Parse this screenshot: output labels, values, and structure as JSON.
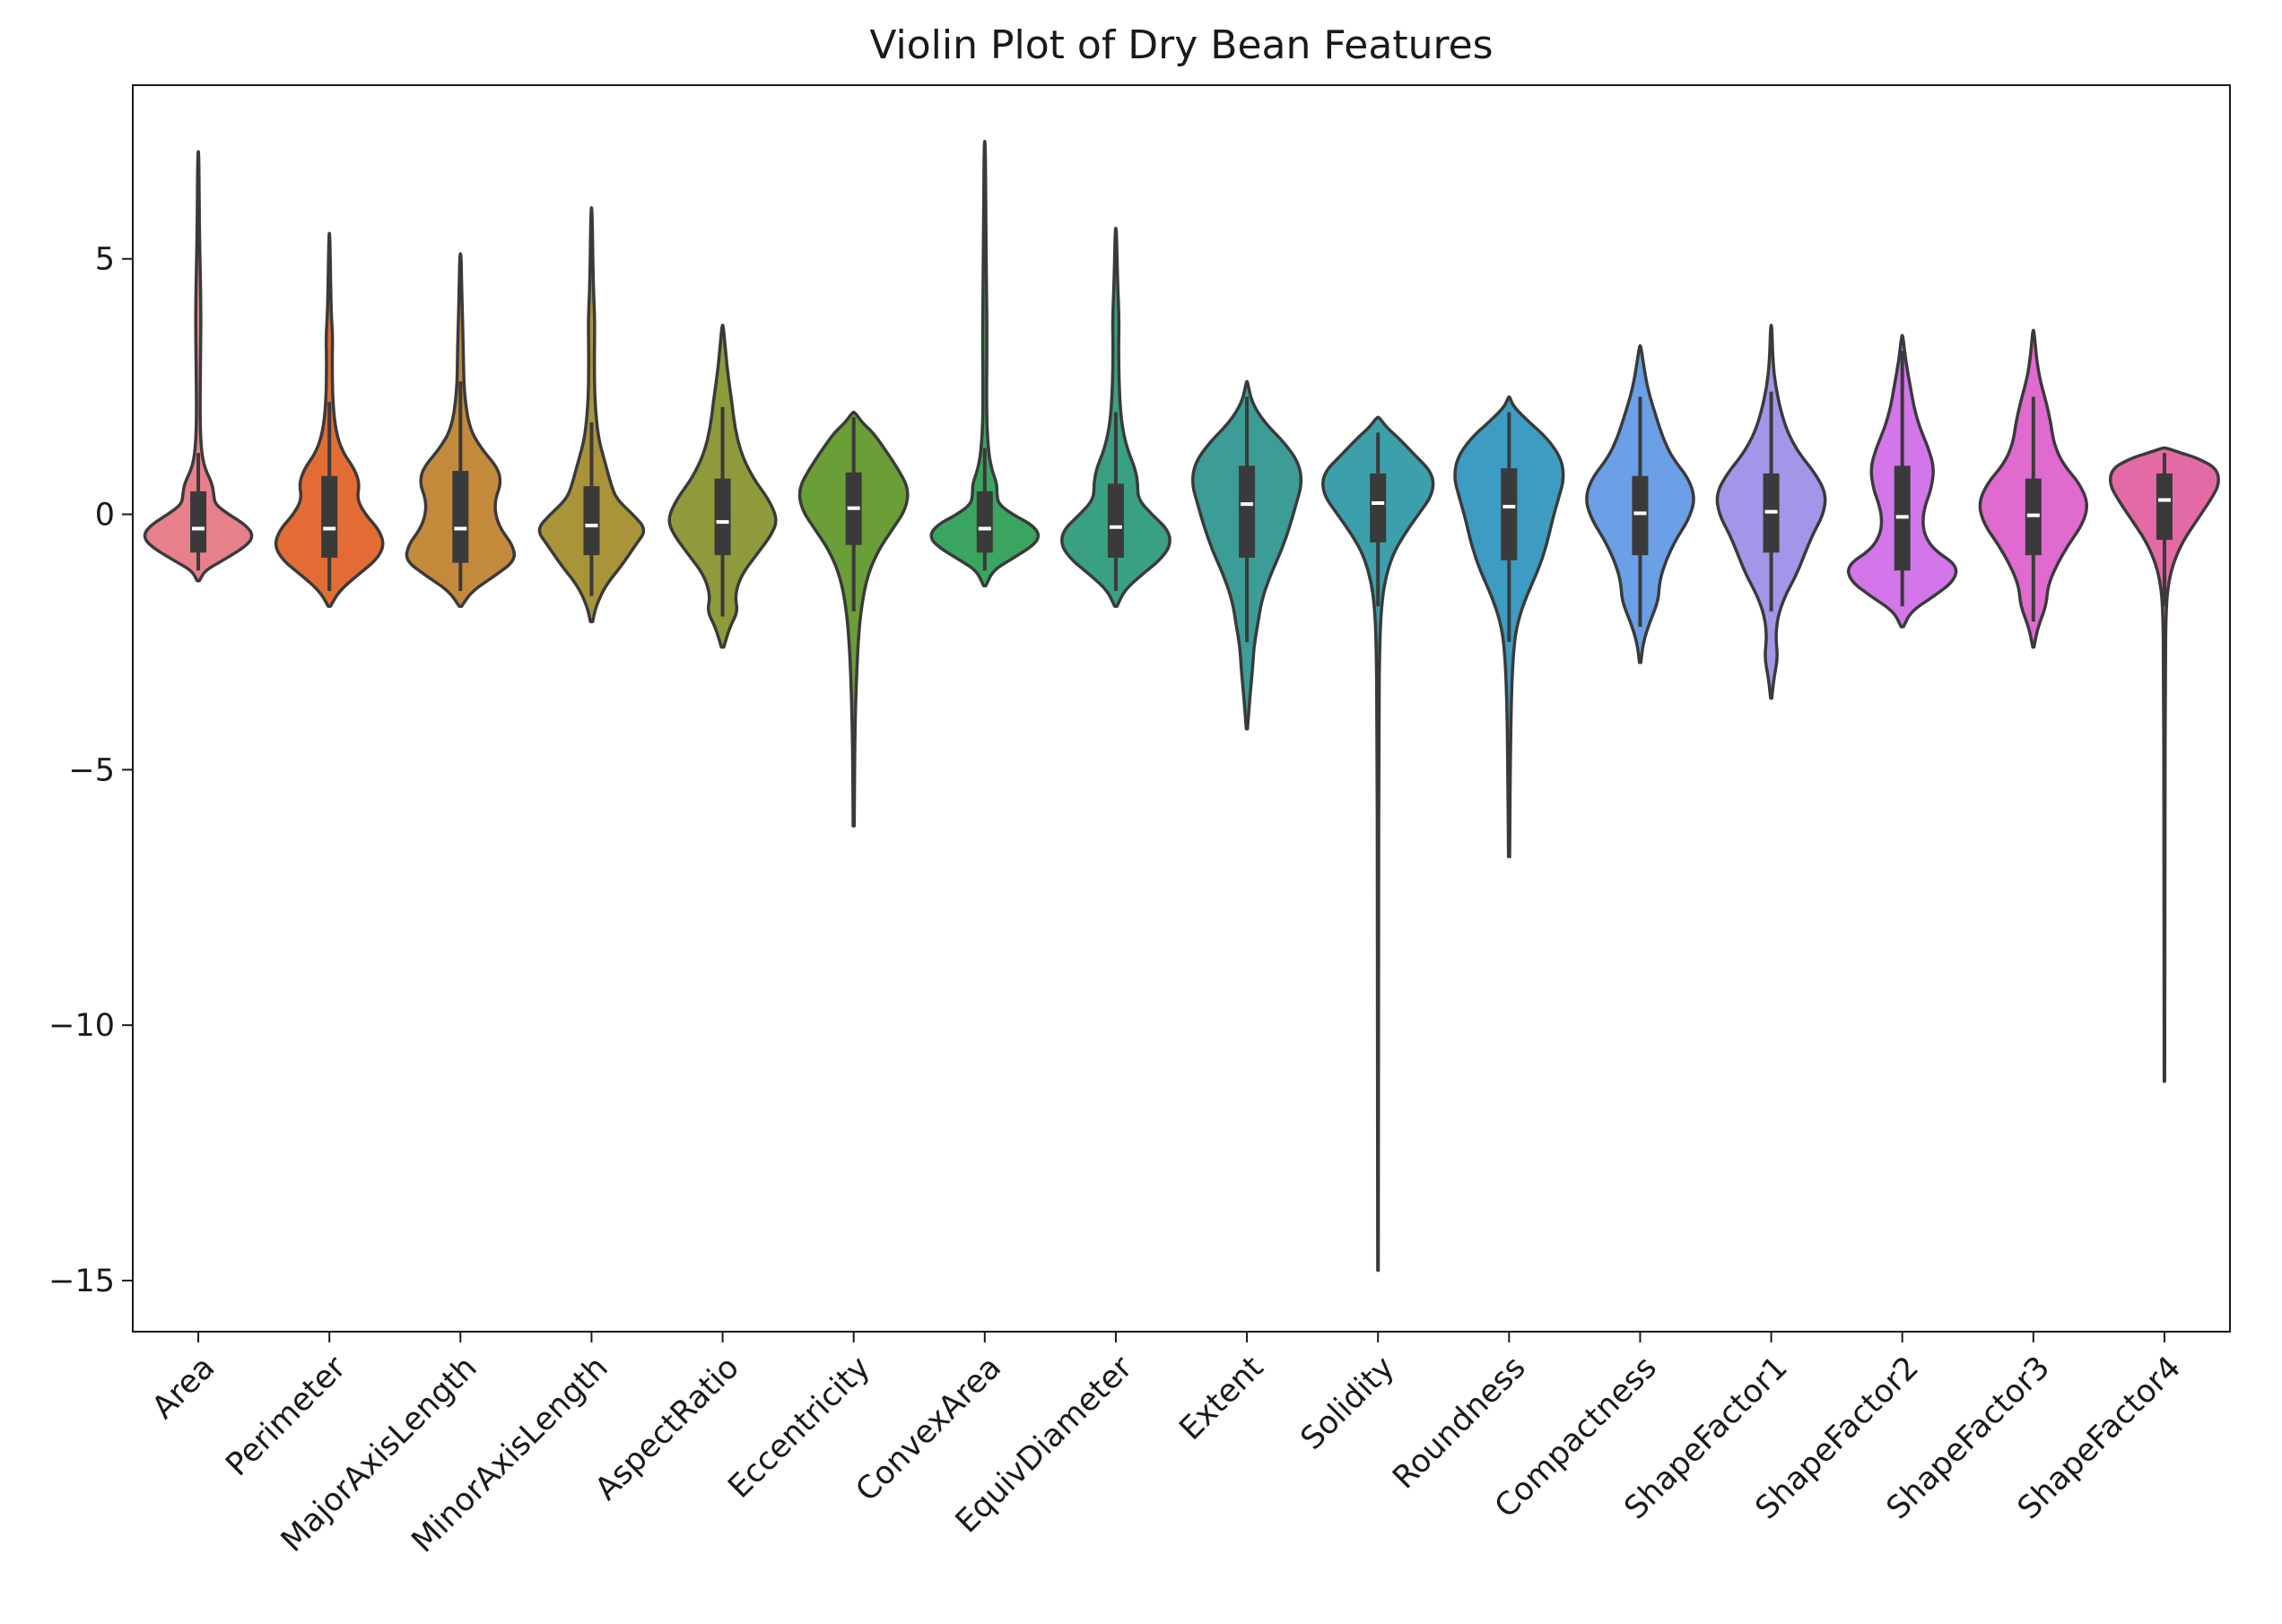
{
  "chart_data": {
    "type": "violin",
    "title": "Violin Plot of Dry Bean Features",
    "xlabel": "",
    "ylabel": "",
    "ylim": [
      -16,
      8.4
    ],
    "yticks": [
      5,
      0,
      -5,
      -10,
      -15
    ],
    "ytick_labels": [
      "5",
      "0",
      "−5",
      "−10",
      "−15"
    ],
    "grid": false,
    "legend": "none",
    "categories": [
      "Area",
      "Perimeter",
      "MajorAxisLength",
      "MinorAxisLength",
      "AspectRatio",
      "Eccentricity",
      "ConvexArea",
      "EquivDiameter",
      "Extent",
      "Solidity",
      "Roundness",
      "Compactness",
      "ShapeFactor1",
      "ShapeFactor2",
      "ShapeFactor3",
      "ShapeFactor4"
    ],
    "colors": [
      "#e8808c",
      "#e36c35",
      "#c48a3c",
      "#aa943a",
      "#8f9b3b",
      "#6a9e36",
      "#3aa560",
      "#3aa083",
      "#3c9d97",
      "#3c9fac",
      "#3d9cc1",
      "#6b9fe6",
      "#a196e8",
      "#d376ea",
      "#e06ad0",
      "#e46aa6"
    ],
    "series": [
      {
        "min": -1.3,
        "max": 7.1,
        "q1": -0.75,
        "median": -0.28,
        "q3": 0.45,
        "whisker_low": -1.1,
        "whisker_high": 1.2,
        "profile": [
          [
            -1.3,
            0.02
          ],
          [
            -1.1,
            0.12
          ],
          [
            -0.9,
            0.45
          ],
          [
            -0.6,
            0.9
          ],
          [
            -0.4,
            1.0
          ],
          [
            -0.2,
            0.85
          ],
          [
            0.0,
            0.55
          ],
          [
            0.2,
            0.3
          ],
          [
            0.4,
            0.28
          ],
          [
            0.6,
            0.25
          ],
          [
            0.9,
            0.12
          ],
          [
            1.2,
            0.06
          ],
          [
            1.8,
            0.03
          ],
          [
            3.0,
            0.04
          ],
          [
            4.0,
            0.05
          ],
          [
            5.5,
            0.02
          ],
          [
            7.1,
            0.01
          ]
        ]
      },
      {
        "min": -1.8,
        "max": 5.5,
        "q1": -0.85,
        "median": -0.28,
        "q3": 0.75,
        "whisker_low": -1.5,
        "whisker_high": 2.2,
        "profile": [
          [
            -1.8,
            0.02
          ],
          [
            -1.5,
            0.18
          ],
          [
            -1.2,
            0.5
          ],
          [
            -0.9,
            0.85
          ],
          [
            -0.6,
            1.0
          ],
          [
            -0.3,
            0.9
          ],
          [
            0.0,
            0.65
          ],
          [
            0.3,
            0.5
          ],
          [
            0.6,
            0.55
          ],
          [
            0.9,
            0.45
          ],
          [
            1.2,
            0.25
          ],
          [
            1.6,
            0.12
          ],
          [
            2.2,
            0.06
          ],
          [
            3.0,
            0.05
          ],
          [
            3.5,
            0.06
          ],
          [
            4.0,
            0.03
          ],
          [
            5.5,
            0.01
          ]
        ]
      },
      {
        "min": -1.8,
        "max": 5.1,
        "q1": -0.95,
        "median": -0.28,
        "q3": 0.85,
        "whisker_low": -1.5,
        "whisker_high": 2.6,
        "profile": [
          [
            -1.8,
            0.02
          ],
          [
            -1.5,
            0.2
          ],
          [
            -1.2,
            0.6
          ],
          [
            -0.9,
            0.95
          ],
          [
            -0.6,
            0.9
          ],
          [
            -0.3,
            0.7
          ],
          [
            0.0,
            0.6
          ],
          [
            0.3,
            0.6
          ],
          [
            0.6,
            0.7
          ],
          [
            0.9,
            0.65
          ],
          [
            1.3,
            0.35
          ],
          [
            1.7,
            0.15
          ],
          [
            2.4,
            0.06
          ],
          [
            3.2,
            0.05
          ],
          [
            3.6,
            0.04
          ],
          [
            4.5,
            0.02
          ],
          [
            5.1,
            0.01
          ]
        ]
      },
      {
        "min": -2.1,
        "max": 6.0,
        "q1": -0.8,
        "median": -0.22,
        "q3": 0.55,
        "whisker_low": -1.6,
        "whisker_high": 1.8,
        "profile": [
          [
            -2.1,
            0.02
          ],
          [
            -1.8,
            0.08
          ],
          [
            -1.4,
            0.25
          ],
          [
            -1.0,
            0.55
          ],
          [
            -0.6,
            0.8
          ],
          [
            -0.3,
            1.0
          ],
          [
            0.0,
            0.75
          ],
          [
            0.3,
            0.45
          ],
          [
            0.6,
            0.35
          ],
          [
            1.0,
            0.25
          ],
          [
            1.5,
            0.12
          ],
          [
            2.2,
            0.06
          ],
          [
            3.0,
            0.05
          ],
          [
            3.8,
            0.06
          ],
          [
            4.5,
            0.03
          ],
          [
            6.0,
            0.01
          ]
        ]
      },
      {
        "min": -2.6,
        "max": 3.7,
        "q1": -0.8,
        "median": -0.15,
        "q3": 0.7,
        "whisker_low": -2.0,
        "whisker_high": 2.1,
        "profile": [
          [
            -2.6,
            0.02
          ],
          [
            -2.2,
            0.12
          ],
          [
            -1.9,
            0.25
          ],
          [
            -1.6,
            0.2
          ],
          [
            -1.2,
            0.3
          ],
          [
            -0.8,
            0.55
          ],
          [
            -0.4,
            0.8
          ],
          [
            -0.1,
            0.9
          ],
          [
            0.3,
            0.75
          ],
          [
            0.7,
            0.5
          ],
          [
            1.2,
            0.3
          ],
          [
            1.7,
            0.2
          ],
          [
            2.2,
            0.15
          ],
          [
            2.8,
            0.08
          ],
          [
            3.3,
            0.04
          ],
          [
            3.7,
            0.01
          ]
        ]
      },
      {
        "min": -6.1,
        "max": 2.0,
        "q1": -0.6,
        "median": 0.12,
        "q3": 0.82,
        "whisker_low": -1.9,
        "whisker_high": 1.9,
        "profile": [
          [
            -6.1,
            0.01
          ],
          [
            -4.5,
            0.02
          ],
          [
            -3.5,
            0.04
          ],
          [
            -2.5,
            0.08
          ],
          [
            -1.8,
            0.14
          ],
          [
            -1.2,
            0.25
          ],
          [
            -0.7,
            0.45
          ],
          [
            -0.3,
            0.7
          ],
          [
            0.1,
            0.95
          ],
          [
            0.5,
            1.0
          ],
          [
            0.9,
            0.8
          ],
          [
            1.3,
            0.55
          ],
          [
            1.6,
            0.35
          ],
          [
            1.8,
            0.15
          ],
          [
            2.0,
            0.02
          ]
        ]
      },
      {
        "min": -1.4,
        "max": 7.3,
        "q1": -0.75,
        "median": -0.28,
        "q3": 0.45,
        "whisker_low": -1.1,
        "whisker_high": 1.3,
        "profile": [
          [
            -1.4,
            0.02
          ],
          [
            -1.1,
            0.15
          ],
          [
            -0.9,
            0.45
          ],
          [
            -0.6,
            0.9
          ],
          [
            -0.4,
            1.0
          ],
          [
            -0.2,
            0.85
          ],
          [
            0.0,
            0.5
          ],
          [
            0.2,
            0.25
          ],
          [
            0.4,
            0.22
          ],
          [
            0.6,
            0.22
          ],
          [
            0.9,
            0.12
          ],
          [
            1.3,
            0.06
          ],
          [
            2.0,
            0.03
          ],
          [
            3.5,
            0.04
          ],
          [
            4.5,
            0.03
          ],
          [
            6.0,
            0.02
          ],
          [
            7.3,
            0.01
          ]
        ]
      },
      {
        "min": -1.8,
        "max": 5.6,
        "q1": -0.85,
        "median": -0.25,
        "q3": 0.6,
        "whisker_low": -1.5,
        "whisker_high": 2.0,
        "profile": [
          [
            -1.8,
            0.02
          ],
          [
            -1.5,
            0.15
          ],
          [
            -1.2,
            0.45
          ],
          [
            -0.9,
            0.8
          ],
          [
            -0.6,
            1.0
          ],
          [
            -0.3,
            0.95
          ],
          [
            0.0,
            0.65
          ],
          [
            0.3,
            0.4
          ],
          [
            0.6,
            0.4
          ],
          [
            0.9,
            0.35
          ],
          [
            1.3,
            0.2
          ],
          [
            1.8,
            0.1
          ],
          [
            2.5,
            0.06
          ],
          [
            3.3,
            0.05
          ],
          [
            3.8,
            0.06
          ],
          [
            4.6,
            0.03
          ],
          [
            5.6,
            0.01
          ]
        ]
      },
      {
        "min": -4.2,
        "max": 2.6,
        "q1": -0.85,
        "median": 0.2,
        "q3": 0.95,
        "whisker_low": -2.5,
        "whisker_high": 2.3,
        "profile": [
          [
            -4.2,
            0.01
          ],
          [
            -3.6,
            0.05
          ],
          [
            -3.0,
            0.1
          ],
          [
            -2.6,
            0.12
          ],
          [
            -2.2,
            0.18
          ],
          [
            -1.7,
            0.25
          ],
          [
            -1.2,
            0.4
          ],
          [
            -0.7,
            0.6
          ],
          [
            -0.2,
            0.75
          ],
          [
            0.2,
            0.85
          ],
          [
            0.6,
            0.95
          ],
          [
            1.0,
            0.9
          ],
          [
            1.4,
            0.65
          ],
          [
            1.8,
            0.3
          ],
          [
            2.2,
            0.08
          ],
          [
            2.6,
            0.01
          ]
        ]
      },
      {
        "min": -14.8,
        "max": 1.9,
        "q1": -0.55,
        "median": 0.22,
        "q3": 0.8,
        "whisker_low": -1.8,
        "whisker_high": 1.6,
        "profile": [
          [
            -14.8,
            0.005
          ],
          [
            -8.0,
            0.01
          ],
          [
            -4.0,
            0.015
          ],
          [
            -2.5,
            0.03
          ],
          [
            -1.8,
            0.06
          ],
          [
            -1.3,
            0.12
          ],
          [
            -0.8,
            0.25
          ],
          [
            -0.4,
            0.45
          ],
          [
            0.0,
            0.7
          ],
          [
            0.4,
            0.95
          ],
          [
            0.8,
            0.95
          ],
          [
            1.2,
            0.6
          ],
          [
            1.5,
            0.35
          ],
          [
            1.7,
            0.15
          ],
          [
            1.9,
            0.02
          ]
        ]
      },
      {
        "min": -6.7,
        "max": 2.3,
        "q1": -0.9,
        "median": 0.15,
        "q3": 0.9,
        "whisker_low": -2.5,
        "whisker_high": 2.0,
        "profile": [
          [
            -6.7,
            0.01
          ],
          [
            -5.0,
            0.02
          ],
          [
            -3.5,
            0.04
          ],
          [
            -2.6,
            0.08
          ],
          [
            -2.1,
            0.15
          ],
          [
            -1.6,
            0.3
          ],
          [
            -1.1,
            0.5
          ],
          [
            -0.6,
            0.65
          ],
          [
            -0.1,
            0.75
          ],
          [
            0.3,
            0.85
          ],
          [
            0.7,
            0.95
          ],
          [
            1.1,
            0.9
          ],
          [
            1.5,
            0.65
          ],
          [
            1.8,
            0.35
          ],
          [
            2.1,
            0.08
          ],
          [
            2.3,
            0.01
          ]
        ]
      },
      {
        "min": -2.9,
        "max": 3.3,
        "q1": -0.8,
        "median": 0.02,
        "q3": 0.75,
        "whisker_low": -2.2,
        "whisker_high": 2.3,
        "profile": [
          [
            -2.9,
            0.01
          ],
          [
            -2.5,
            0.05
          ],
          [
            -2.1,
            0.15
          ],
          [
            -1.7,
            0.28
          ],
          [
            -1.3,
            0.3
          ],
          [
            -0.9,
            0.4
          ],
          [
            -0.5,
            0.55
          ],
          [
            -0.1,
            0.75
          ],
          [
            0.3,
            0.85
          ],
          [
            0.7,
            0.75
          ],
          [
            1.1,
            0.5
          ],
          [
            1.5,
            0.35
          ],
          [
            1.9,
            0.25
          ],
          [
            2.3,
            0.15
          ],
          [
            2.7,
            0.08
          ],
          [
            3.3,
            0.01
          ]
        ]
      },
      {
        "min": -3.6,
        "max": 3.7,
        "q1": -0.75,
        "median": 0.05,
        "q3": 0.8,
        "whisker_low": -1.9,
        "whisker_high": 2.4,
        "profile": [
          [
            -3.6,
            0.01
          ],
          [
            -3.2,
            0.05
          ],
          [
            -2.8,
            0.12
          ],
          [
            -2.4,
            0.08
          ],
          [
            -2.0,
            0.12
          ],
          [
            -1.6,
            0.25
          ],
          [
            -1.2,
            0.45
          ],
          [
            -0.8,
            0.6
          ],
          [
            -0.4,
            0.75
          ],
          [
            0.0,
            0.95
          ],
          [
            0.4,
            1.0
          ],
          [
            0.8,
            0.8
          ],
          [
            1.2,
            0.5
          ],
          [
            1.6,
            0.3
          ],
          [
            2.0,
            0.18
          ],
          [
            2.5,
            0.08
          ],
          [
            3.0,
            0.03
          ],
          [
            3.7,
            0.01
          ]
        ]
      },
      {
        "min": -2.2,
        "max": 3.5,
        "q1": -1.1,
        "median": -0.05,
        "q3": 0.95,
        "whisker_low": -1.8,
        "whisker_high": 3.2,
        "profile": [
          [
            -2.2,
            0.02
          ],
          [
            -1.9,
            0.15
          ],
          [
            -1.6,
            0.55
          ],
          [
            -1.3,
            0.9
          ],
          [
            -1.0,
            0.95
          ],
          [
            -0.7,
            0.55
          ],
          [
            -0.4,
            0.38
          ],
          [
            -0.1,
            0.35
          ],
          [
            0.2,
            0.4
          ],
          [
            0.5,
            0.5
          ],
          [
            0.9,
            0.55
          ],
          [
            1.3,
            0.45
          ],
          [
            1.7,
            0.3
          ],
          [
            2.1,
            0.2
          ],
          [
            2.5,
            0.14
          ],
          [
            3.0,
            0.06
          ],
          [
            3.5,
            0.01
          ]
        ]
      },
      {
        "min": -2.6,
        "max": 3.6,
        "q1": -0.8,
        "median": -0.02,
        "q3": 0.7,
        "whisker_low": -2.1,
        "whisker_high": 2.3,
        "profile": [
          [
            -2.6,
            0.01
          ],
          [
            -2.2,
            0.08
          ],
          [
            -1.8,
            0.22
          ],
          [
            -1.4,
            0.25
          ],
          [
            -1.0,
            0.4
          ],
          [
            -0.6,
            0.6
          ],
          [
            -0.2,
            0.85
          ],
          [
            0.2,
            0.95
          ],
          [
            0.6,
            0.8
          ],
          [
            1.0,
            0.5
          ],
          [
            1.4,
            0.35
          ],
          [
            1.8,
            0.3
          ],
          [
            2.2,
            0.22
          ],
          [
            2.7,
            0.1
          ],
          [
            3.1,
            0.05
          ],
          [
            3.6,
            0.01
          ]
        ]
      },
      {
        "min": -11.1,
        "max": 1.3,
        "q1": -0.5,
        "median": 0.28,
        "q3": 0.8,
        "whisker_low": -1.8,
        "whisker_high": 1.2,
        "profile": [
          [
            -11.1,
            0.005
          ],
          [
            -6.0,
            0.01
          ],
          [
            -3.0,
            0.015
          ],
          [
            -1.8,
            0.03
          ],
          [
            -1.3,
            0.08
          ],
          [
            -0.9,
            0.18
          ],
          [
            -0.5,
            0.35
          ],
          [
            -0.1,
            0.6
          ],
          [
            0.3,
            0.85
          ],
          [
            0.6,
            1.0
          ],
          [
            0.9,
            0.95
          ],
          [
            1.1,
            0.6
          ],
          [
            1.2,
            0.3
          ],
          [
            1.3,
            0.03
          ]
        ]
      }
    ]
  }
}
